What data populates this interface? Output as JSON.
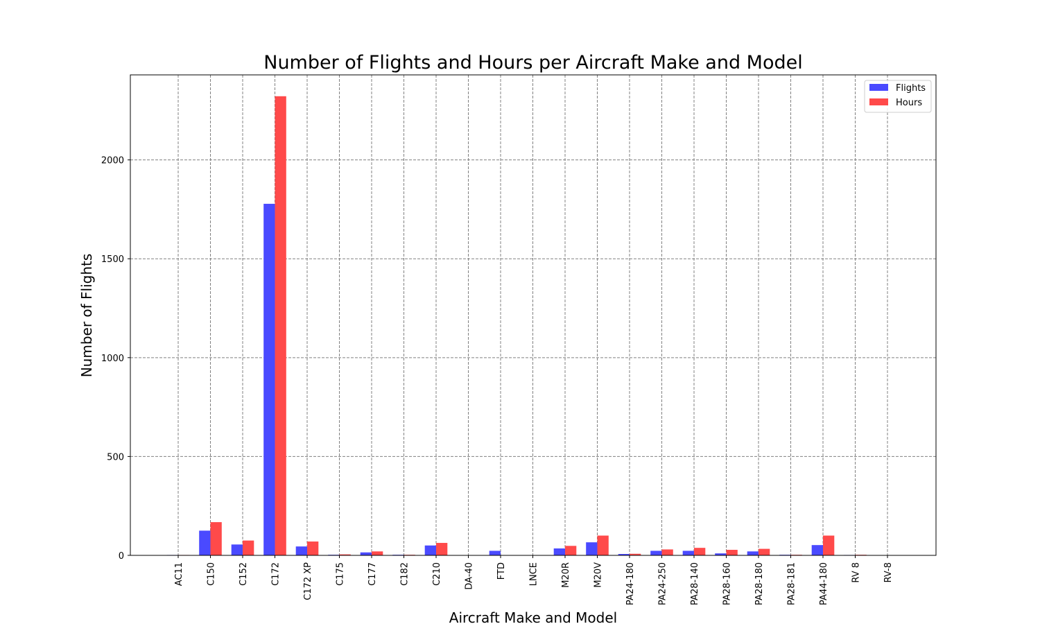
{
  "chart_data": {
    "type": "bar",
    "title": "Number of Flights and Hours per Aircraft Make and Model",
    "xlabel": "Aircraft Make and Model",
    "ylabel": "Number of Flights",
    "ylim": [
      0,
      2430
    ],
    "yticks": [
      0,
      500,
      1000,
      1500,
      2000
    ],
    "grid": true,
    "legend_position": "top-right",
    "categories": [
      "AC11",
      "C150",
      "C152",
      "C172",
      "C172 XP",
      "C175",
      "C177",
      "C182",
      "C210",
      "DA-40",
      "FTD",
      "LNCE",
      "M20R",
      "M20V",
      "PA24-180",
      "PA24-250",
      "PA28-140",
      "PA28-160",
      "PA28-180",
      "PA28-181",
      "PA44-180",
      "RV 8",
      "RV-8"
    ],
    "series": [
      {
        "name": "Flights",
        "color": "#4a4aff",
        "values": [
          2,
          125,
          55,
          1778,
          45,
          3,
          15,
          3,
          50,
          0,
          23,
          0,
          35,
          66,
          7,
          23,
          23,
          10,
          20,
          3,
          52,
          2,
          0
        ]
      },
      {
        "name": "Hours",
        "color": "#ff4a4a",
        "values": [
          2,
          168,
          75,
          2322,
          70,
          5,
          20,
          3,
          63,
          0,
          0,
          0,
          48,
          100,
          8,
          30,
          38,
          28,
          33,
          3,
          100,
          3,
          0
        ]
      }
    ]
  }
}
